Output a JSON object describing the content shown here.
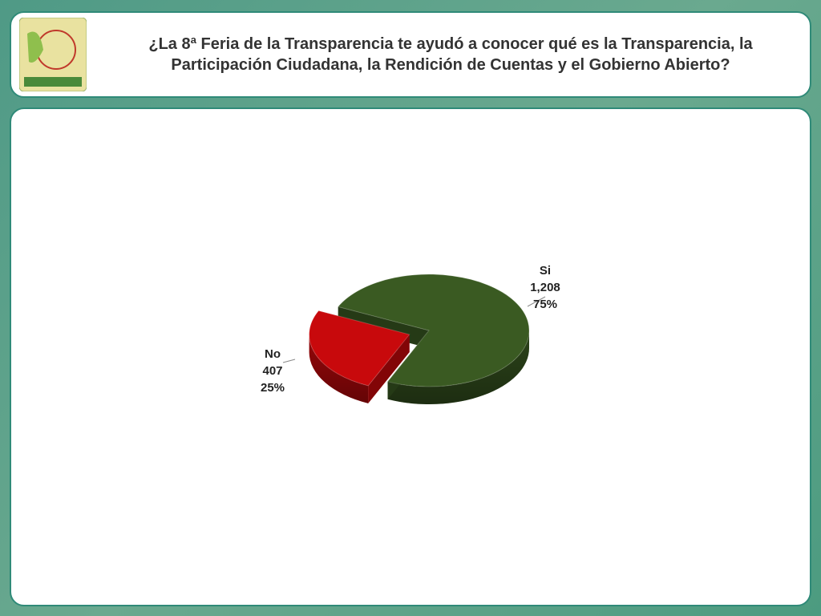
{
  "chart_data": {
    "type": "pie",
    "title": "¿La 8ª Feria de la Transparencia te ayudó a conocer qué es la Transparencia, la Participación Ciudadana, la Rendición de Cuentas y el Gobierno Abierto?",
    "categories": [
      "Si",
      "No"
    ],
    "values": [
      1208,
      407
    ],
    "value_labels": [
      "1,208",
      "407"
    ],
    "percent_labels": [
      "75%",
      "25%"
    ],
    "colors": [
      "#3a5a22",
      "#c8090c"
    ],
    "explode": [
      false,
      true
    ]
  }
}
